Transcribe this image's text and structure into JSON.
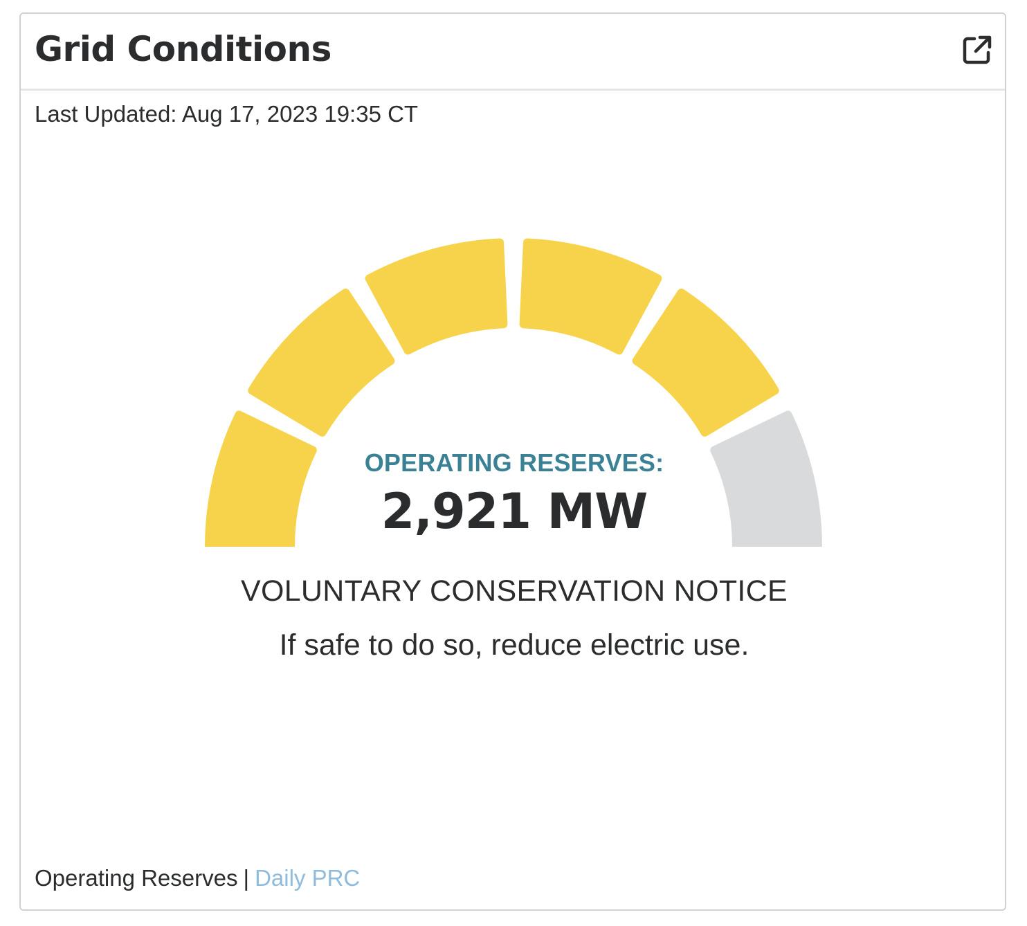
{
  "card": {
    "title": "Grid Conditions",
    "open_icon": "external-link-icon",
    "last_updated_label": "Last Updated:",
    "last_updated_value": "Aug 17, 2023 19:35 CT"
  },
  "gauge": {
    "label": "OPERATING RESERVES:",
    "value": "2,921 MW",
    "segments_total": 6,
    "segments_filled": 5,
    "fill_color": "#f6d34a",
    "empty_color": "#d9dadb"
  },
  "status": {
    "title": "VOLUNTARY CONSERVATION NOTICE",
    "message": "If safe to do so, reduce electric use."
  },
  "footer": {
    "text": "Operating Reserves",
    "separator": "|",
    "link": "Daily PRC"
  },
  "colors": {
    "label_teal": "#3a8196",
    "link_blue": "#8fbbdc",
    "text_dark": "#2a2c2e"
  }
}
